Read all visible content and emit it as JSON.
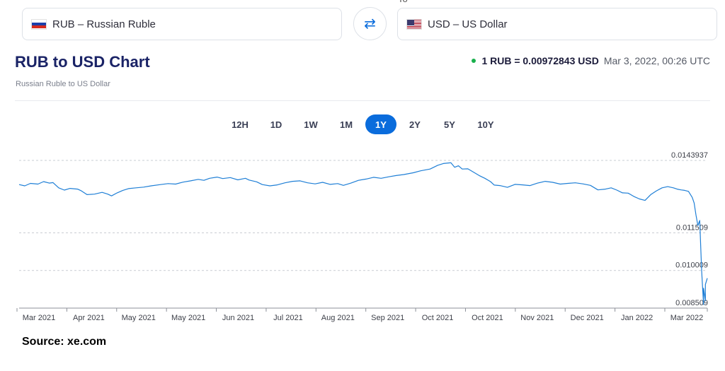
{
  "converter": {
    "to_label_fragment": "To",
    "from_currency": "RUB – Russian Ruble",
    "to_currency": "USD – US Dollar",
    "swap_icon": "swap-arrows-icon",
    "from_flag": "russia-flag-icon",
    "to_flag": "usa-flag-icon"
  },
  "header": {
    "title": "RUB to USD Chart",
    "subtitle": "Russian Ruble to US Dollar",
    "rate_text": "1 RUB = 0.00972843 USD",
    "rate_time": "Mar 3, 2022, 00:26 UTC",
    "status_color": "#19b04c"
  },
  "tabs": {
    "items": [
      "12H",
      "1D",
      "1W",
      "1M",
      "1Y",
      "2Y",
      "5Y",
      "10Y"
    ],
    "active": "1Y",
    "active_color": "#0a6cdc"
  },
  "chart_data": {
    "type": "line",
    "line_color": "#1f7fd6",
    "grid": "dashed horizontal",
    "y_tick_labels": [
      "0.0143937",
      "0.011509",
      "0.010009",
      "0.008509"
    ],
    "y_ticks": [
      0.0143937,
      0.011509,
      0.010009,
      0.008509
    ],
    "ylim": [
      0.008509,
      0.0143937
    ],
    "x_tick_labels": [
      "Mar 2021",
      "Apr 2021",
      "May 2021",
      "May 2021",
      "Jun 2021",
      "Jul 2021",
      "Aug 2021",
      "Sep 2021",
      "Oct 2021",
      "Oct 2021",
      "Nov 2021",
      "Dec 2021",
      "Jan 2022",
      "Mar 2022"
    ],
    "series": [
      {
        "x": [
          "2021-03-03",
          "2021-03-06",
          "2021-03-09",
          "2021-03-13",
          "2021-03-16",
          "2021-03-19",
          "2021-03-21",
          "2021-03-24",
          "2021-03-27",
          "2021-03-30",
          "2021-04-03",
          "2021-04-05",
          "2021-04-08",
          "2021-04-12",
          "2021-04-16",
          "2021-04-19",
          "2021-04-21",
          "2021-04-24",
          "2021-04-27",
          "2021-04-30",
          "2021-05-04",
          "2021-05-08",
          "2021-05-12",
          "2021-05-17",
          "2021-05-21",
          "2021-05-25",
          "2021-05-29",
          "2021-06-02",
          "2021-06-06",
          "2021-06-09",
          "2021-06-12",
          "2021-06-16",
          "2021-06-19",
          "2021-06-23",
          "2021-06-27",
          "2021-07-01",
          "2021-07-03",
          "2021-07-07",
          "2021-07-10",
          "2021-07-14",
          "2021-07-18",
          "2021-07-22",
          "2021-07-26",
          "2021-07-30",
          "2021-08-03",
          "2021-08-07",
          "2021-08-11",
          "2021-08-15",
          "2021-08-19",
          "2021-08-22",
          "2021-08-26",
          "2021-08-30",
          "2021-09-03",
          "2021-09-07",
          "2021-09-11",
          "2021-09-15",
          "2021-09-19",
          "2021-09-23",
          "2021-09-28",
          "2021-10-02",
          "2021-10-07",
          "2021-10-11",
          "2021-10-14",
          "2021-10-18",
          "2021-10-20",
          "2021-10-22",
          "2021-10-24",
          "2021-10-27",
          "2021-10-29",
          "2021-11-02",
          "2021-11-05",
          "2021-11-08",
          "2021-11-10",
          "2021-11-13",
          "2021-11-17",
          "2021-11-21",
          "2021-11-25",
          "2021-11-29",
          "2021-12-03",
          "2021-12-07",
          "2021-12-11",
          "2021-12-15",
          "2021-12-19",
          "2021-12-23",
          "2021-12-27",
          "2021-12-31",
          "2022-01-04",
          "2022-01-08",
          "2022-01-11",
          "2022-01-14",
          "2022-01-17",
          "2022-01-20",
          "2022-01-23",
          "2022-01-26",
          "2022-01-29",
          "2022-02-01",
          "2022-02-04",
          "2022-02-07",
          "2022-02-10",
          "2022-02-13",
          "2022-02-15",
          "2022-02-17",
          "2022-02-19",
          "2022-02-21",
          "2022-02-23",
          "2022-02-24",
          "2022-02-25",
          "2022-02-26",
          "2022-02-27",
          "2022-02-28",
          "2022-03-01",
          "2022-03-01",
          "2022-03-02",
          "2022-03-02",
          "2022-03-03"
        ],
        "y": [
          0.01343,
          0.01338,
          0.01348,
          0.01345,
          0.01355,
          0.01349,
          0.01351,
          0.0133,
          0.01321,
          0.01328,
          0.01325,
          0.01318,
          0.01303,
          0.01305,
          0.01312,
          0.01305,
          0.01298,
          0.0131,
          0.0132,
          0.01327,
          0.0133,
          0.01333,
          0.01338,
          0.01343,
          0.01347,
          0.01345,
          0.01353,
          0.01358,
          0.01364,
          0.0136,
          0.01368,
          0.01373,
          0.01367,
          0.01371,
          0.01362,
          0.01368,
          0.01361,
          0.01354,
          0.01343,
          0.01338,
          0.01342,
          0.0135,
          0.01356,
          0.01358,
          0.0135,
          0.01346,
          0.01352,
          0.01344,
          0.01347,
          0.0134,
          0.01349,
          0.0136,
          0.01365,
          0.01372,
          0.01368,
          0.01374,
          0.01379,
          0.01383,
          0.0139,
          0.01398,
          0.01405,
          0.0142,
          0.01427,
          0.0143,
          0.01412,
          0.01418,
          0.01405,
          0.01406,
          0.01397,
          0.01379,
          0.01368,
          0.01355,
          0.01341,
          0.01339,
          0.01332,
          0.01344,
          0.01342,
          0.01339,
          0.01349,
          0.01356,
          0.01352,
          0.01345,
          0.01348,
          0.0135,
          0.01346,
          0.0134,
          0.01322,
          0.01325,
          0.0133,
          0.01321,
          0.0131,
          0.01309,
          0.01296,
          0.01286,
          0.0128,
          0.01303,
          0.01318,
          0.0133,
          0.01335,
          0.0133,
          0.01325,
          0.01322,
          0.0132,
          0.01316,
          0.01292,
          0.0127,
          0.01222,
          0.0118,
          0.012,
          0.01,
          0.00865,
          0.0093,
          0.0088,
          0.00945,
          0.0097
        ]
      }
    ]
  },
  "footer": {
    "source": "Source: xe.com"
  }
}
